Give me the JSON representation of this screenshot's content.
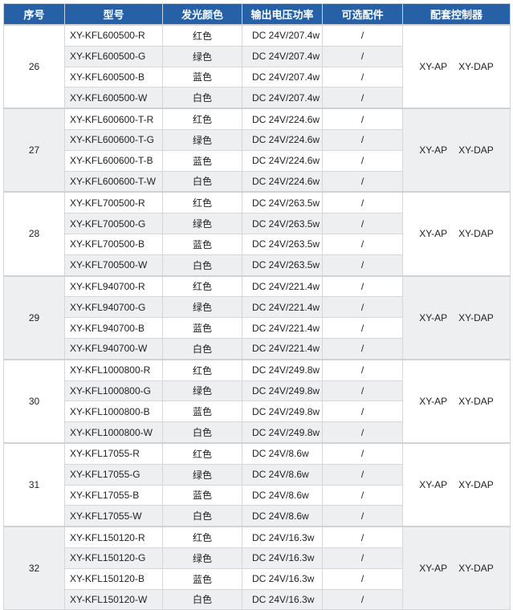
{
  "header": [
    "序号",
    "型号",
    "发光颜色",
    "输出电压功率",
    "可选配件",
    "配套控制器"
  ],
  "colors": {
    "header_bg": "#2661a8",
    "shaded_bg": "#eeeff1",
    "border": "#d6d7da"
  },
  "groups": [
    {
      "no": "26",
      "shaded": false,
      "controllers": [
        "XY-AP",
        "XY-DAP"
      ],
      "rows": [
        {
          "model": "XY-KFL600500-R",
          "color": "红色",
          "power": "DC 24V/207.4w",
          "accessory": "/"
        },
        {
          "model": "XY-KFL600500-G",
          "color": "绿色",
          "power": "DC 24V/207.4w",
          "accessory": "/"
        },
        {
          "model": "XY-KFL600500-B",
          "color": "蓝色",
          "power": "DC 24V/207.4w",
          "accessory": "/"
        },
        {
          "model": "XY-KFL600500-W",
          "color": "白色",
          "power": "DC 24V/207.4w",
          "accessory": "/"
        }
      ]
    },
    {
      "no": "27",
      "shaded": true,
      "controllers": [
        "XY-AP",
        "XY-DAP"
      ],
      "rows": [
        {
          "model": "XY-KFL600600-T-R",
          "color": "红色",
          "power": "DC 24V/224.6w",
          "accessory": "/"
        },
        {
          "model": "XY-KFL600600-T-G",
          "color": "绿色",
          "power": "DC 24V/224.6w",
          "accessory": "/"
        },
        {
          "model": "XY-KFL600600-T-B",
          "color": "蓝色",
          "power": "DC 24V/224.6w",
          "accessory": "/"
        },
        {
          "model": "XY-KFL600600-T-W",
          "color": "白色",
          "power": "DC 24V/224.6w",
          "accessory": "/"
        }
      ]
    },
    {
      "no": "28",
      "shaded": false,
      "controllers": [
        "XY-AP",
        "XY-DAP"
      ],
      "rows": [
        {
          "model": "XY-KFL700500-R",
          "color": "红色",
          "power": "DC 24V/263.5w",
          "accessory": "/"
        },
        {
          "model": "XY-KFL700500-G",
          "color": "绿色",
          "power": "DC 24V/263.5w",
          "accessory": "/"
        },
        {
          "model": "XY-KFL700500-B",
          "color": "蓝色",
          "power": "DC 24V/263.5w",
          "accessory": "/"
        },
        {
          "model": "XY-KFL700500-W",
          "color": "白色",
          "power": "DC 24V/263.5w",
          "accessory": "/"
        }
      ]
    },
    {
      "no": "29",
      "shaded": true,
      "controllers": [
        "XY-AP",
        "XY-DAP"
      ],
      "rows": [
        {
          "model": "XY-KFL940700-R",
          "color": "红色",
          "power": "DC 24V/221.4w",
          "accessory": "/"
        },
        {
          "model": "XY-KFL940700-G",
          "color": "绿色",
          "power": "DC 24V/221.4w",
          "accessory": "/"
        },
        {
          "model": "XY-KFL940700-B",
          "color": "蓝色",
          "power": "DC 24V/221.4w",
          "accessory": "/"
        },
        {
          "model": "XY-KFL940700-W",
          "color": "白色",
          "power": "DC 24V/221.4w",
          "accessory": "/"
        }
      ]
    },
    {
      "no": "30",
      "shaded": false,
      "controllers": [
        "XY-AP",
        "XY-DAP"
      ],
      "rows": [
        {
          "model": "XY-KFL1000800-R",
          "color": "红色",
          "power": "DC 24V/249.8w",
          "accessory": "/"
        },
        {
          "model": "XY-KFL1000800-G",
          "color": "绿色",
          "power": "DC 24V/249.8w",
          "accessory": "/"
        },
        {
          "model": "XY-KFL1000800-B",
          "color": "蓝色",
          "power": "DC 24V/249.8w",
          "accessory": "/"
        },
        {
          "model": "XY-KFL1000800-W",
          "color": "白色",
          "power": "DC 24V/249.8w",
          "accessory": "/"
        }
      ]
    },
    {
      "no": "31",
      "shaded": false,
      "controllers": [
        "XY-AP",
        "XY-DAP"
      ],
      "rows": [
        {
          "model": "XY-KFL17055-R",
          "color": "红色",
          "power": "DC 24V/8.6w",
          "accessory": "/"
        },
        {
          "model": "XY-KFL17055-G",
          "color": "绿色",
          "power": "DC 24V/8.6w",
          "accessory": "/"
        },
        {
          "model": "XY-KFL17055-B",
          "color": "蓝色",
          "power": "DC 24V/8.6w",
          "accessory": "/"
        },
        {
          "model": "XY-KFL17055-W",
          "color": "白色",
          "power": "DC 24V/8.6w",
          "accessory": "/"
        }
      ]
    },
    {
      "no": "32",
      "shaded": true,
      "controllers": [
        "XY-AP",
        "XY-DAP"
      ],
      "rows": [
        {
          "model": "XY-KFL150120-R",
          "color": "红色",
          "power": "DC 24V/16.3w",
          "accessory": "/"
        },
        {
          "model": "XY-KFL150120-G",
          "color": "绿色",
          "power": "DC 24V/16.3w",
          "accessory": "/"
        },
        {
          "model": "XY-KFL150120-B",
          "color": "蓝色",
          "power": "DC 24V/16.3w",
          "accessory": "/"
        },
        {
          "model": "XY-KFL150120-W",
          "color": "白色",
          "power": "DC 24V/16.3w",
          "accessory": "/"
        }
      ]
    }
  ]
}
